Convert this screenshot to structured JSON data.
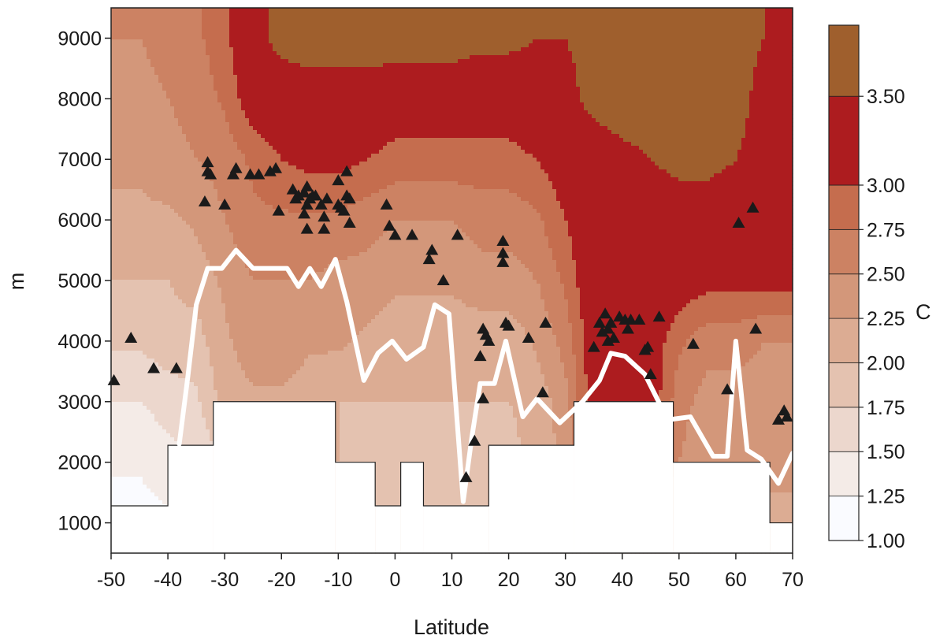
{
  "chart_data": {
    "type": "heatmap",
    "xlabel": "Latitude",
    "ylabel": "m",
    "xlim": [
      -50,
      70
    ],
    "ylim": [
      500,
      9500
    ],
    "x_ticks": [
      "-50",
      "-40",
      "-30",
      "-20",
      "-10",
      "0",
      "10",
      "20",
      "30",
      "40",
      "50",
      "60",
      "70"
    ],
    "y_ticks": [
      "1000",
      "2000",
      "3000",
      "4000",
      "5000",
      "6000",
      "7000",
      "8000",
      "9000"
    ],
    "colorbar": {
      "title": "C",
      "levels": [
        "1.00",
        "1.25",
        "1.50",
        "1.75",
        "2.00",
        "2.25",
        "2.50",
        "2.75",
        "3.00",
        "3.50"
      ],
      "bands": [
        {
          "from": 1.0,
          "to": 1.25,
          "color": "#fafbff"
        },
        {
          "from": 1.25,
          "to": 1.5,
          "color": "#f4ebe7"
        },
        {
          "from": 1.5,
          "to": 1.75,
          "color": "#ecd7cd"
        },
        {
          "from": 1.75,
          "to": 2.0,
          "color": "#e4c2b0"
        },
        {
          "from": 2.0,
          "to": 2.25,
          "color": "#dcac93"
        },
        {
          "from": 2.25,
          "to": 2.5,
          "color": "#d3977a"
        },
        {
          "from": 2.5,
          "to": 2.75,
          "color": "#cc8263"
        },
        {
          "from": 2.75,
          "to": 3.0,
          "color": "#c56d4e"
        },
        {
          "from": 3.0,
          "to": 3.5,
          "color": "#ad1c1f"
        },
        {
          "from": 3.5,
          "to": 3.9,
          "color": "#9f5f2d"
        }
      ]
    },
    "contour_grid": {
      "lat": [
        -50,
        -45,
        -40,
        -35,
        -30,
        -25,
        -20,
        -15,
        -10,
        -5,
        0,
        5,
        10,
        15,
        20,
        25,
        30,
        35,
        40,
        45,
        50,
        55,
        60,
        65,
        70
      ],
      "alt": [
        1000,
        2000,
        3000,
        4000,
        5000,
        6000,
        7000,
        8000,
        9000
      ],
      "values": [
        [
          1.1,
          1.1,
          1.2,
          1.3,
          1.5,
          1.6,
          1.7,
          1.7,
          1.8,
          1.8,
          1.8,
          1.8,
          1.8,
          1.8,
          1.8,
          1.9,
          2.0,
          2.3,
          2.4,
          2.3,
          2.2,
          2.2,
          2.2,
          2.2,
          2.2
        ],
        [
          1.3,
          1.3,
          1.4,
          1.5,
          1.8,
          1.9,
          2.0,
          2.0,
          2.0,
          1.9,
          1.9,
          1.9,
          1.9,
          1.9,
          1.9,
          2.1,
          2.3,
          3.1,
          3.1,
          2.9,
          2.5,
          2.3,
          2.3,
          2.3,
          2.3
        ],
        [
          1.5,
          1.5,
          1.6,
          1.7,
          2.1,
          2.2,
          2.2,
          2.1,
          2.0,
          2.0,
          2.0,
          2.0,
          2.0,
          2.0,
          2.0,
          2.1,
          2.4,
          3.2,
          3.3,
          3.2,
          2.6,
          2.4,
          2.4,
          2.4,
          2.4
        ],
        [
          1.8,
          1.8,
          1.9,
          1.9,
          2.2,
          2.4,
          2.4,
          2.3,
          2.3,
          2.2,
          2.1,
          2.1,
          2.1,
          2.1,
          2.1,
          2.3,
          2.6,
          3.2,
          3.3,
          3.2,
          2.8,
          2.6,
          2.6,
          2.5,
          2.5
        ],
        [
          2.0,
          2.0,
          2.0,
          2.1,
          2.3,
          2.5,
          2.5,
          2.5,
          2.4,
          2.4,
          2.3,
          2.3,
          2.3,
          2.4,
          2.4,
          2.5,
          2.8,
          3.3,
          3.3,
          3.3,
          3.2,
          3.1,
          3.1,
          3.1,
          3.1
        ],
        [
          2.2,
          2.2,
          2.2,
          2.3,
          2.5,
          2.7,
          2.7,
          2.7,
          2.7,
          2.6,
          2.5,
          2.5,
          2.5,
          2.6,
          2.6,
          2.7,
          3.0,
          3.3,
          3.3,
          3.3,
          3.3,
          3.3,
          3.3,
          3.3,
          3.3
        ],
        [
          2.3,
          2.3,
          2.4,
          2.5,
          2.6,
          2.8,
          3.0,
          3.1,
          3.1,
          3.0,
          2.9,
          2.9,
          2.9,
          2.9,
          2.9,
          3.0,
          3.2,
          3.3,
          3.4,
          3.5,
          3.6,
          3.6,
          3.5,
          3.4,
          3.3
        ],
        [
          2.4,
          2.4,
          2.5,
          2.6,
          2.8,
          3.2,
          3.3,
          3.3,
          3.3,
          3.3,
          3.2,
          3.2,
          3.2,
          3.2,
          3.2,
          3.3,
          3.4,
          3.6,
          3.7,
          3.7,
          3.7,
          3.7,
          3.6,
          3.4,
          3.3
        ],
        [
          2.5,
          2.5,
          2.6,
          2.7,
          2.9,
          3.4,
          3.6,
          3.7,
          3.7,
          3.7,
          3.7,
          3.7,
          3.7,
          3.6,
          3.6,
          3.5,
          3.5,
          3.6,
          3.7,
          3.7,
          3.7,
          3.7,
          3.6,
          3.5,
          3.4
        ]
      ]
    },
    "terrain_mask": [
      {
        "lat_from": -50,
        "lat_to": -40,
        "alt_top": 1280
      },
      {
        "lat_from": -40,
        "lat_to": -32,
        "alt_top": 2280
      },
      {
        "lat_from": -32,
        "lat_to": -10.5,
        "alt_top": 3000
      },
      {
        "lat_from": -10.5,
        "lat_to": -3.5,
        "alt_top": 2000
      },
      {
        "lat_from": -3.5,
        "lat_to": 1,
        "alt_top": 1280
      },
      {
        "lat_from": 1,
        "lat_to": 5,
        "alt_top": 2000
      },
      {
        "lat_from": 5,
        "lat_to": 16.5,
        "alt_top": 1280
      },
      {
        "lat_from": 16.5,
        "lat_to": 31.5,
        "alt_top": 2280
      },
      {
        "lat_from": 31.5,
        "lat_to": 49,
        "alt_top": 3000
      },
      {
        "lat_from": 49,
        "lat_to": 66,
        "alt_top": 2000
      },
      {
        "lat_from": 66,
        "lat_to": 70,
        "alt_top": 1000
      }
    ],
    "series": [
      {
        "type": "line",
        "color": "#ffffff",
        "points": [
          [
            -38,
            2300
          ],
          [
            -36.5,
            3400
          ],
          [
            -35,
            4600
          ],
          [
            -33,
            5200
          ],
          [
            -30.5,
            5200
          ],
          [
            -28,
            5500
          ],
          [
            -25,
            5200
          ],
          [
            -22,
            5200
          ],
          [
            -19,
            5200
          ],
          [
            -17,
            4900
          ],
          [
            -15,
            5200
          ],
          [
            -13,
            4900
          ],
          [
            -10.5,
            5350
          ],
          [
            -8.5,
            4650
          ],
          [
            -5.5,
            3350
          ],
          [
            -3,
            3800
          ],
          [
            -0.5,
            4000
          ],
          [
            2,
            3700
          ],
          [
            5,
            3900
          ],
          [
            7,
            4600
          ],
          [
            9.5,
            4450
          ],
          [
            12,
            1350
          ],
          [
            13.5,
            2400
          ],
          [
            15,
            3300
          ],
          [
            17.5,
            3300
          ],
          [
            19.5,
            4000
          ],
          [
            22.5,
            2750
          ],
          [
            25,
            3050
          ],
          [
            29,
            2650
          ],
          [
            33,
            3000
          ],
          [
            36,
            3350
          ],
          [
            38,
            3800
          ],
          [
            40.5,
            3750
          ],
          [
            44,
            3450
          ],
          [
            48,
            2700
          ],
          [
            52,
            2750
          ],
          [
            56,
            2100
          ],
          [
            58.5,
            2100
          ],
          [
            60,
            4000
          ],
          [
            62,
            2200
          ],
          [
            64.5,
            2050
          ],
          [
            67.5,
            1650
          ],
          [
            70,
            2150
          ]
        ]
      },
      {
        "type": "scatter",
        "marker": "triangle",
        "color": "#1a1a1a",
        "points": [
          [
            -49.5,
            3350
          ],
          [
            -46.5,
            4050
          ],
          [
            -42.5,
            3550
          ],
          [
            -38.5,
            3550
          ],
          [
            -33.5,
            6300
          ],
          [
            -33,
            6800
          ],
          [
            -33,
            6950
          ],
          [
            -32.5,
            6750
          ],
          [
            -30,
            6250
          ],
          [
            -28.5,
            6750
          ],
          [
            -28,
            6850
          ],
          [
            -25.5,
            6750
          ],
          [
            -24,
            6750
          ],
          [
            -22,
            6800
          ],
          [
            -21,
            6850
          ],
          [
            -20.5,
            6150
          ],
          [
            -18,
            6500
          ],
          [
            -17.5,
            6350
          ],
          [
            -17,
            6400
          ],
          [
            -16,
            6450
          ],
          [
            -16,
            6100
          ],
          [
            -15.5,
            5850
          ],
          [
            -15.5,
            6250
          ],
          [
            -15.5,
            6550
          ],
          [
            -15,
            6350
          ],
          [
            -14.5,
            6400
          ],
          [
            -14,
            6400
          ],
          [
            -13,
            6250
          ],
          [
            -12.5,
            6050
          ],
          [
            -12.5,
            5850
          ],
          [
            -12,
            6350
          ],
          [
            -10,
            6250
          ],
          [
            -10,
            6650
          ],
          [
            -9.5,
            6200
          ],
          [
            -9,
            6150
          ],
          [
            -8.5,
            6400
          ],
          [
            -8.5,
            6800
          ],
          [
            -8,
            6350
          ],
          [
            -8,
            5950
          ],
          [
            -1.5,
            6250
          ],
          [
            -1,
            5900
          ],
          [
            0,
            5750
          ],
          [
            3,
            5750
          ],
          [
            6,
            5350
          ],
          [
            6.5,
            5500
          ],
          [
            8.5,
            5000
          ],
          [
            11,
            5750
          ],
          [
            12.5,
            1750
          ],
          [
            14,
            2350
          ],
          [
            15,
            3750
          ],
          [
            15.5,
            3050
          ],
          [
            15.5,
            4200
          ],
          [
            16,
            4100
          ],
          [
            16.5,
            4000
          ],
          [
            19,
            5300
          ],
          [
            19,
            5450
          ],
          [
            19,
            5650
          ],
          [
            19.5,
            4300
          ],
          [
            20,
            4250
          ],
          [
            23.5,
            4050
          ],
          [
            26,
            3150
          ],
          [
            26.5,
            4300
          ],
          [
            35,
            3900
          ],
          [
            36,
            4300
          ],
          [
            36.5,
            4150
          ],
          [
            37,
            4450
          ],
          [
            37.5,
            4000
          ],
          [
            37.5,
            4200
          ],
          [
            38,
            4300
          ],
          [
            38.5,
            4050
          ],
          [
            39.5,
            4400
          ],
          [
            40.5,
            4350
          ],
          [
            41,
            4200
          ],
          [
            41.5,
            4350
          ],
          [
            43,
            4350
          ],
          [
            44,
            3850
          ],
          [
            44.5,
            3900
          ],
          [
            45,
            3450
          ],
          [
            46.5,
            4400
          ],
          [
            52.5,
            3950
          ],
          [
            58.5,
            3200
          ],
          [
            60.5,
            5950
          ],
          [
            63,
            6200
          ],
          [
            63.5,
            4200
          ],
          [
            67.5,
            2700
          ],
          [
            68.5,
            2850
          ],
          [
            69,
            2750
          ]
        ]
      }
    ]
  }
}
